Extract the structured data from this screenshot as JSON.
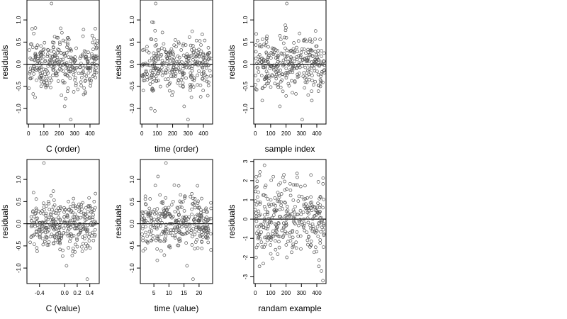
{
  "chart_data": [
    {
      "type": "scatter",
      "xlabel": "C (order)",
      "ylabel": "residuals",
      "xlim": [
        -10,
        460
      ],
      "ylim": [
        -1.35,
        1.45
      ],
      "xticks": [
        0,
        100,
        200,
        300,
        400
      ],
      "xtick_labels": [
        "0",
        "100",
        "200",
        "300",
        "400"
      ],
      "yticks": [
        -1.0,
        -0.5,
        0.0,
        0.5,
        1.0
      ],
      "ytick_labels": [
        "-1.0",
        "-0.5",
        "0.0",
        "0.5",
        "1.0"
      ],
      "hline": 0,
      "x_max": 450,
      "x_min": 0,
      "y_center": 0,
      "y_spread": 0.3,
      "outliers": [
        {
          "x": 150,
          "y": 1.37
        },
        {
          "x": 275,
          "y": -1.25
        },
        {
          "x": 235,
          "y": -0.95
        }
      ]
    },
    {
      "type": "scatter",
      "xlabel": "time (order)",
      "ylabel": "residuals",
      "xlim": [
        -10,
        460
      ],
      "ylim": [
        -1.35,
        1.45
      ],
      "xticks": [
        0,
        100,
        200,
        300,
        400
      ],
      "xtick_labels": [
        "0",
        "100",
        "200",
        "300",
        "400"
      ],
      "yticks": [
        -1.0,
        -0.5,
        0.0,
        0.5,
        1.0
      ],
      "ytick_labels": [
        "-1.0",
        "-0.5",
        "0.0",
        "0.5",
        "1.0"
      ],
      "hline": 0,
      "x_max": 450,
      "x_min": 0,
      "y_center": 0,
      "y_spread": 0.3,
      "outliers": [
        {
          "x": 90,
          "y": 1.37
        },
        {
          "x": 300,
          "y": -1.25
        },
        {
          "x": 275,
          "y": -0.95
        }
      ]
    },
    {
      "type": "scatter",
      "xlabel": "sample index",
      "ylabel": "residuals",
      "xlim": [
        -10,
        460
      ],
      "ylim": [
        -1.35,
        1.45
      ],
      "xticks": [
        0,
        100,
        200,
        300,
        400
      ],
      "xtick_labels": [
        "0",
        "100",
        "200",
        "300",
        "400"
      ],
      "yticks": [
        -1.0,
        -0.5,
        0.0,
        0.5,
        1.0
      ],
      "ytick_labels": [
        "-1.0",
        "-0.5",
        "0.0",
        "0.5",
        "1.0"
      ],
      "hline": 0,
      "x_max": 450,
      "x_min": 0,
      "y_center": 0,
      "y_spread": 0.3,
      "outliers": [
        {
          "x": 205,
          "y": 1.37
        },
        {
          "x": 195,
          "y": 0.88
        },
        {
          "x": 200,
          "y": 0.82
        },
        {
          "x": 305,
          "y": -1.25
        },
        {
          "x": 160,
          "y": -0.95
        }
      ]
    },
    {
      "type": "scatter",
      "xlabel": "C (value)",
      "ylabel": "residuals",
      "xlim": [
        -0.6,
        0.55
      ],
      "ylim": [
        -1.35,
        1.45
      ],
      "xticks": [
        -0.4,
        0.0,
        0.2,
        0.4
      ],
      "xtick_labels": [
        "-0.4",
        "0.0",
        "0.2",
        "0.4"
      ],
      "yticks": [
        -1.0,
        -0.5,
        0.0,
        0.5,
        1.0
      ],
      "ytick_labels": [
        "-1.0",
        "-0.5",
        "0.0",
        "0.5",
        "1.0"
      ],
      "hline": 0,
      "x_max": 0.5,
      "x_min": -0.55,
      "y_center": 0,
      "y_spread": 0.3,
      "outliers": [
        {
          "x": -0.33,
          "y": 1.37
        },
        {
          "x": 0.36,
          "y": -1.25
        },
        {
          "x": 0.03,
          "y": -0.95
        }
      ]
    },
    {
      "type": "scatter",
      "xlabel": "time (value)",
      "ylabel": "residuals",
      "xlim": [
        0.5,
        24.5
      ],
      "ylim": [
        -1.35,
        1.45
      ],
      "xticks": [
        5,
        10,
        15,
        20
      ],
      "xtick_labels": [
        "5",
        "10",
        "15",
        "20"
      ],
      "yticks": [
        -1.0,
        -0.5,
        0.0,
        0.5,
        1.0
      ],
      "ytick_labels": [
        "-1.0",
        "-0.5",
        "0.0",
        "0.5",
        "1.0"
      ],
      "hline": 0,
      "x_max": 24,
      "x_min": 1,
      "y_center": 0,
      "y_spread": 0.3,
      "outliers": [
        {
          "x": 9,
          "y": 1.37
        },
        {
          "x": 18,
          "y": -1.25
        },
        {
          "x": 16,
          "y": -0.95
        }
      ]
    },
    {
      "type": "scatter",
      "xlabel": "randam example",
      "ylabel": "residuals",
      "xlim": [
        -10,
        460
      ],
      "ylim": [
        -3.35,
        3.1
      ],
      "xticks": [
        0,
        100,
        200,
        300,
        400
      ],
      "xtick_labels": [
        "0",
        "100",
        "200",
        "300",
        "400"
      ],
      "yticks": [
        -3,
        -2,
        -1,
        0,
        1,
        2,
        3
      ],
      "ytick_labels": [
        "-3",
        "-2",
        "-1",
        "0",
        "1",
        "2",
        "3"
      ],
      "hline": 0,
      "x_max": 450,
      "x_min": 0,
      "y_center": 0,
      "y_spread": 1.0,
      "outliers": [
        {
          "x": 60,
          "y": 2.8
        },
        {
          "x": 440,
          "y": -3.2
        },
        {
          "x": 430,
          "y": -2.7
        }
      ]
    }
  ],
  "point_color": "#555555"
}
